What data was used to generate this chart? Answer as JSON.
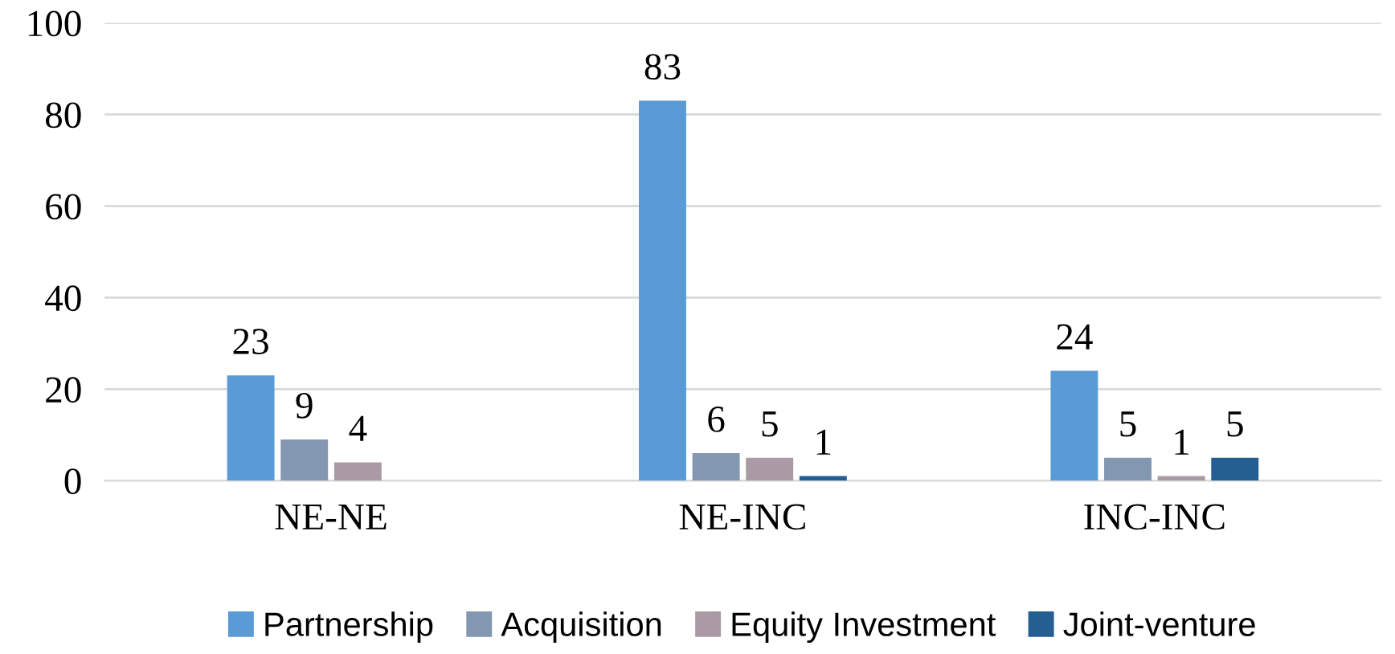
{
  "chart_data": {
    "type": "bar",
    "categories": [
      "NE-NE",
      "NE-INC",
      "INC-INC"
    ],
    "series": [
      {
        "name": "Partnership",
        "color": "#5b9bd5",
        "values": [
          23,
          83,
          24
        ]
      },
      {
        "name": "Acquisition",
        "color": "#8497b0",
        "values": [
          9,
          6,
          5
        ]
      },
      {
        "name": "Equity Investment",
        "color": "#a99aa5",
        "values": [
          4,
          5,
          1
        ]
      },
      {
        "name": "Joint-venture",
        "color": "#255e91",
        "values": [
          null,
          1,
          5
        ]
      }
    ],
    "ylim": [
      0,
      100
    ],
    "yticks": [
      0,
      20,
      40,
      60,
      80,
      100
    ],
    "grid": "y",
    "legend": "bottom",
    "data_labels": true
  }
}
